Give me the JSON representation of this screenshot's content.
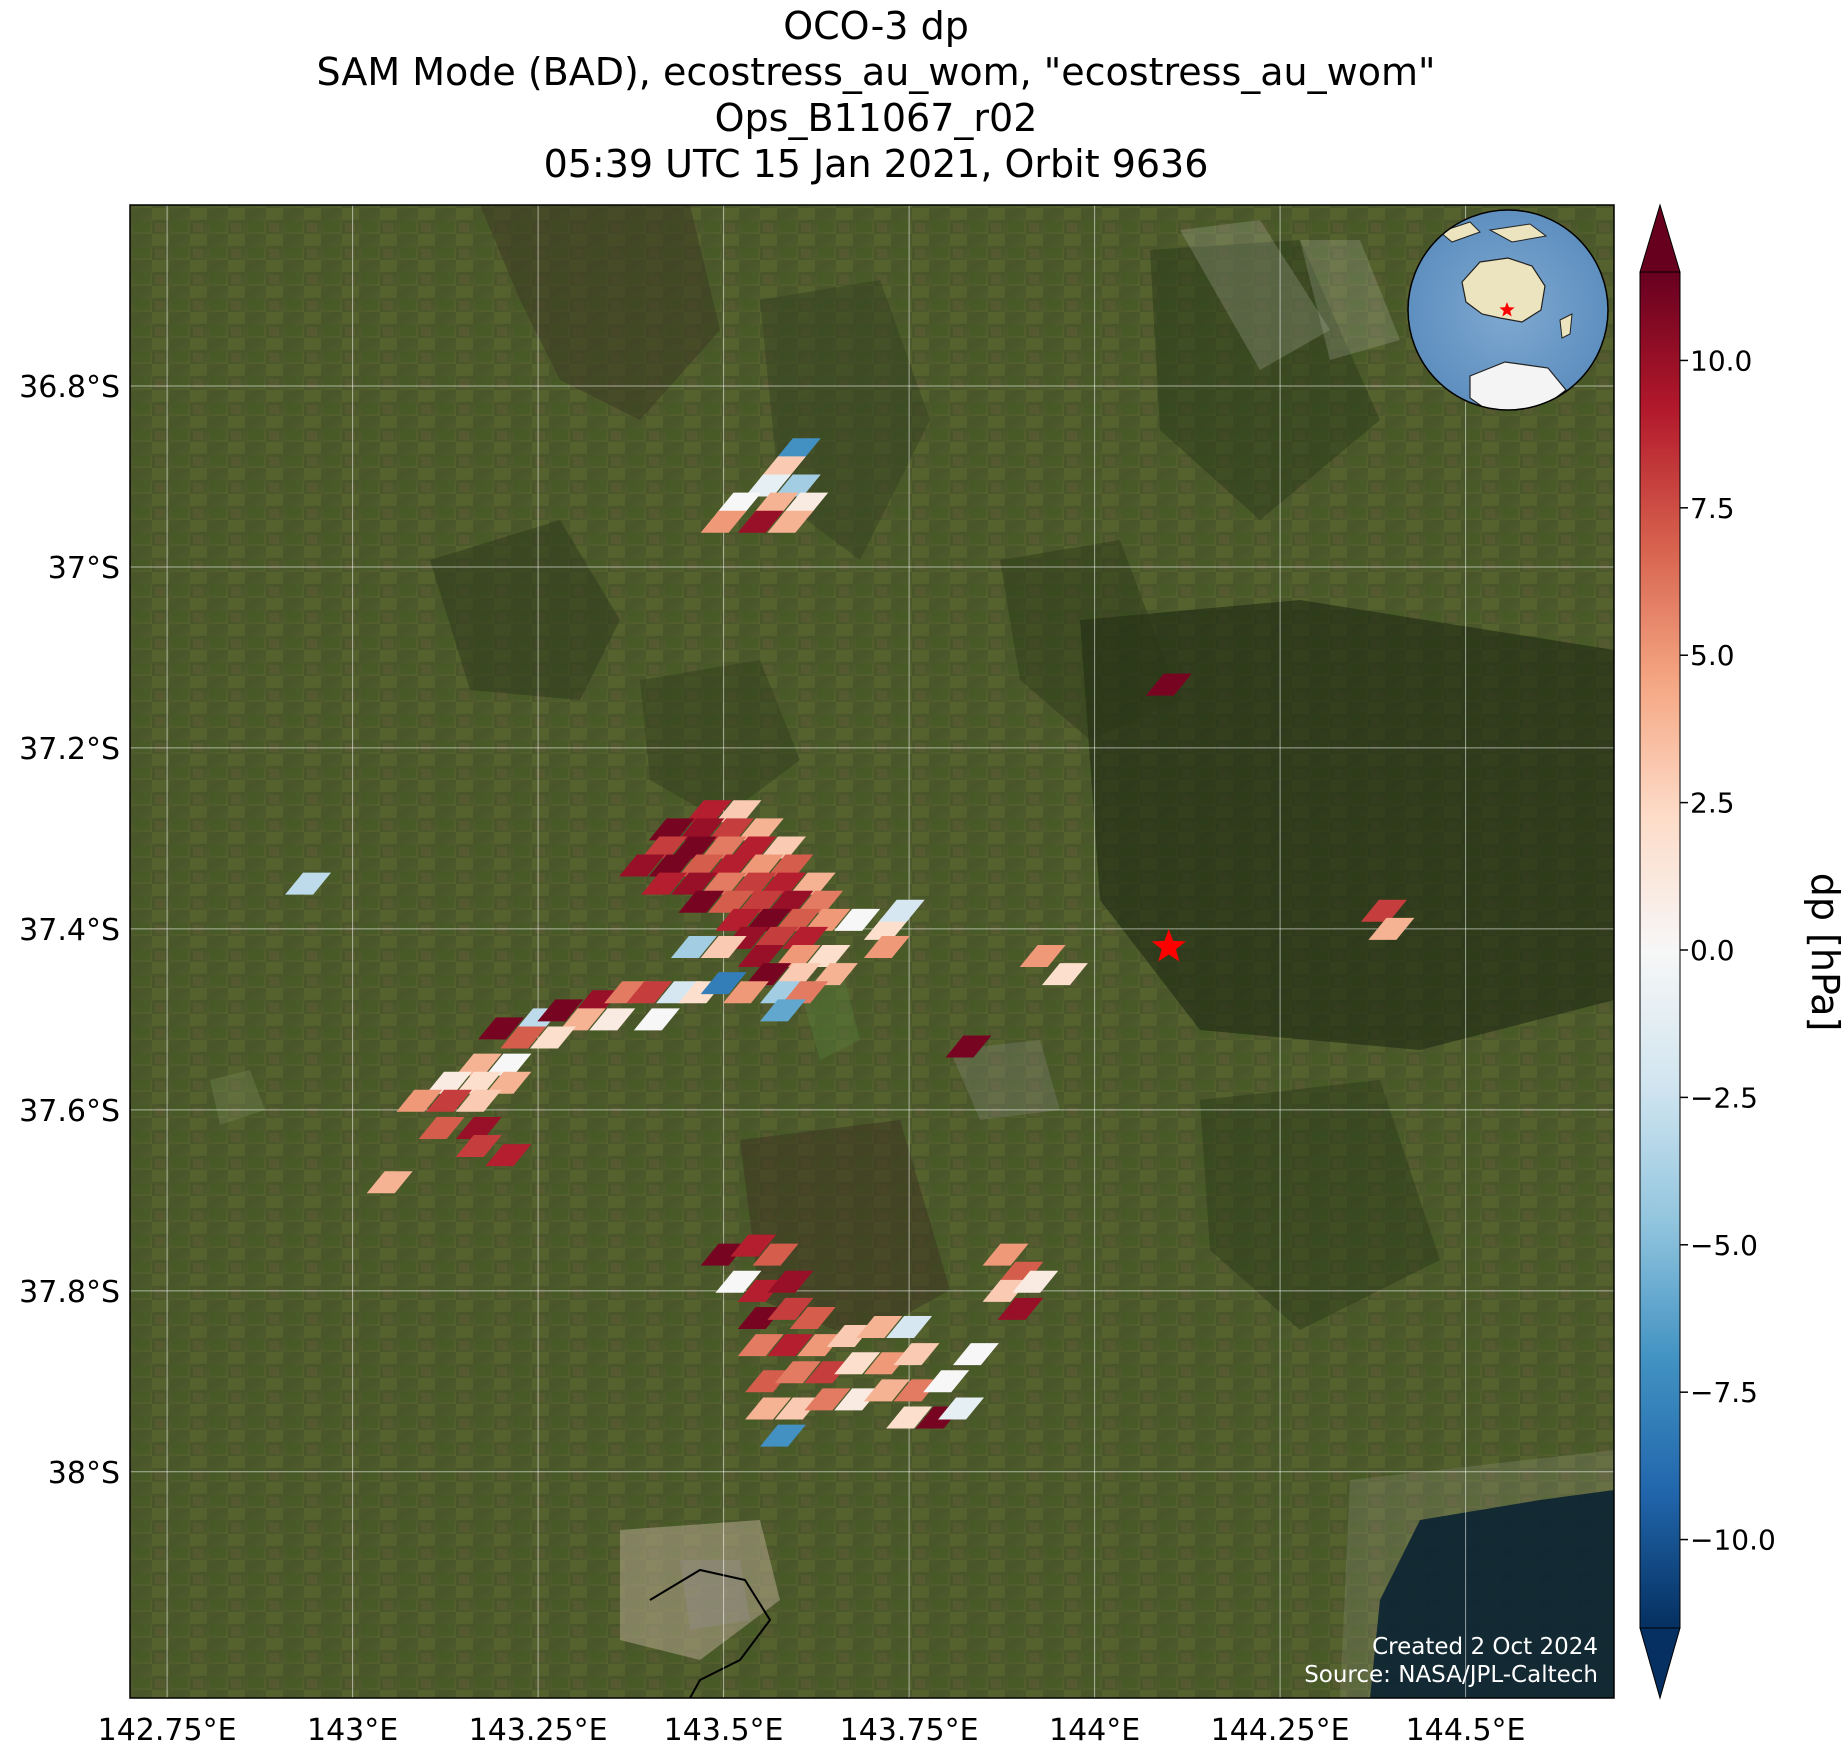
{
  "title": {
    "line1": "OCO-3 dp",
    "line2": "SAM Mode (BAD), ecostress_au_wom, \"ecostress_au_wom\"",
    "line3": "Ops_B11067_r02",
    "line4": "05:39 UTC 15 Jan 2021, Orbit 9636"
  },
  "map": {
    "lon_range": [
      142.7,
      144.7
    ],
    "lat_range": [
      -38.25,
      -36.6
    ],
    "lon_ticks": [
      {
        "value": 142.75,
        "label": "142.75°E"
      },
      {
        "value": 143.0,
        "label": "143°E"
      },
      {
        "value": 143.25,
        "label": "143.25°E"
      },
      {
        "value": 143.5,
        "label": "143.5°E"
      },
      {
        "value": 143.75,
        "label": "143.75°E"
      },
      {
        "value": 144.0,
        "label": "144°E"
      },
      {
        "value": 144.25,
        "label": "144.25°E"
      },
      {
        "value": 144.5,
        "label": "144.5°E"
      }
    ],
    "lat_ticks": [
      {
        "value": -36.8,
        "label": "36.8°S"
      },
      {
        "value": -37.0,
        "label": "37°S"
      },
      {
        "value": -37.2,
        "label": "37.2°S"
      },
      {
        "value": -37.4,
        "label": "37.4°S"
      },
      {
        "value": -37.6,
        "label": "37.6°S"
      },
      {
        "value": -37.8,
        "label": "37.8°S"
      },
      {
        "value": -38.0,
        "label": "38°S"
      }
    ],
    "target": {
      "lon": 144.1,
      "lat": -37.42,
      "color": "#ff0000"
    },
    "basemap": "satellite imagery",
    "inset_globe": {
      "centered_on": "Australia",
      "marker_color": "#ff0000"
    }
  },
  "colorbar": {
    "label": "dp [hPa]",
    "vmin": -11.5,
    "vmax": 11.5,
    "colormap": "RdBu_r",
    "extend": "both",
    "ticks": [
      {
        "value": 10.0,
        "label": "10.0"
      },
      {
        "value": 7.5,
        "label": "7.5"
      },
      {
        "value": 5.0,
        "label": "5.0"
      },
      {
        "value": 2.5,
        "label": "2.5"
      },
      {
        "value": 0.0,
        "label": "0.0"
      },
      {
        "value": -2.5,
        "label": "−2.5"
      },
      {
        "value": -5.0,
        "label": "−5.0"
      },
      {
        "value": -7.5,
        "label": "−7.5"
      },
      {
        "value": -10.0,
        "label": "−10.0"
      }
    ]
  },
  "footer": {
    "created": "Created 2 Oct 2024",
    "source": "Source: NASA/JPL-Caltech"
  },
  "chart_data": {
    "type": "scatter",
    "variable": "dp",
    "unit": "hPa",
    "points": [
      {
        "lon": 143.6,
        "lat": -36.87,
        "dp": -7
      },
      {
        "lon": 143.58,
        "lat": -36.89,
        "dp": 3
      },
      {
        "lon": 143.56,
        "lat": -36.91,
        "dp": -1
      },
      {
        "lon": 143.6,
        "lat": -36.91,
        "dp": -4
      },
      {
        "lon": 143.52,
        "lat": -36.93,
        "dp": 0
      },
      {
        "lon": 143.57,
        "lat": -36.93,
        "dp": 4
      },
      {
        "lon": 143.61,
        "lat": -36.93,
        "dp": 1
      },
      {
        "lon": 143.5,
        "lat": -36.95,
        "dp": 5
      },
      {
        "lon": 143.55,
        "lat": -36.95,
        "dp": 10
      },
      {
        "lon": 143.59,
        "lat": -36.95,
        "dp": 4
      },
      {
        "lon": 144.1,
        "lat": -37.13,
        "dp": 11
      },
      {
        "lon": 143.48,
        "lat": -37.27,
        "dp": 9
      },
      {
        "lon": 143.52,
        "lat": -37.27,
        "dp": 3
      },
      {
        "lon": 143.43,
        "lat": -37.29,
        "dp": 11
      },
      {
        "lon": 143.47,
        "lat": -37.29,
        "dp": 10
      },
      {
        "lon": 143.51,
        "lat": -37.29,
        "dp": 8
      },
      {
        "lon": 143.55,
        "lat": -37.29,
        "dp": 4
      },
      {
        "lon": 143.42,
        "lat": -37.31,
        "dp": 8
      },
      {
        "lon": 143.46,
        "lat": -37.31,
        "dp": 11
      },
      {
        "lon": 143.5,
        "lat": -37.31,
        "dp": 6
      },
      {
        "lon": 143.54,
        "lat": -37.31,
        "dp": 9
      },
      {
        "lon": 143.58,
        "lat": -37.31,
        "dp": 3
      },
      {
        "lon": 143.39,
        "lat": -37.33,
        "dp": 10
      },
      {
        "lon": 143.43,
        "lat": -37.33,
        "dp": 11
      },
      {
        "lon": 143.47,
        "lat": -37.33,
        "dp": 7
      },
      {
        "lon": 143.51,
        "lat": -37.33,
        "dp": 9
      },
      {
        "lon": 143.55,
        "lat": -37.33,
        "dp": 5
      },
      {
        "lon": 143.59,
        "lat": -37.33,
        "dp": 7
      },
      {
        "lon": 143.42,
        "lat": -37.35,
        "dp": 9
      },
      {
        "lon": 143.46,
        "lat": -37.35,
        "dp": 10
      },
      {
        "lon": 143.5,
        "lat": -37.35,
        "dp": 6
      },
      {
        "lon": 143.54,
        "lat": -37.35,
        "dp": 8
      },
      {
        "lon": 143.58,
        "lat": -37.35,
        "dp": 9
      },
      {
        "lon": 143.62,
        "lat": -37.35,
        "dp": 4
      },
      {
        "lon": 143.47,
        "lat": -37.37,
        "dp": 11
      },
      {
        "lon": 143.51,
        "lat": -37.37,
        "dp": 7
      },
      {
        "lon": 143.55,
        "lat": -37.37,
        "dp": 8
      },
      {
        "lon": 143.59,
        "lat": -37.37,
        "dp": 10
      },
      {
        "lon": 143.63,
        "lat": -37.37,
        "dp": 6
      },
      {
        "lon": 143.52,
        "lat": -37.39,
        "dp": 9
      },
      {
        "lon": 143.56,
        "lat": -37.39,
        "dp": 11
      },
      {
        "lon": 143.6,
        "lat": -37.39,
        "dp": 7
      },
      {
        "lon": 143.64,
        "lat": -37.39,
        "dp": 5
      },
      {
        "lon": 143.53,
        "lat": -37.41,
        "dp": 10
      },
      {
        "lon": 143.57,
        "lat": -37.41,
        "dp": 8
      },
      {
        "lon": 143.61,
        "lat": -37.41,
        "dp": 9
      },
      {
        "lon": 143.46,
        "lat": -37.42,
        "dp": -4
      },
      {
        "lon": 143.5,
        "lat": -37.42,
        "dp": 3
      },
      {
        "lon": 143.55,
        "lat": -37.43,
        "dp": 10
      },
      {
        "lon": 143.6,
        "lat": -37.43,
        "dp": 5
      },
      {
        "lon": 143.64,
        "lat": -37.43,
        "dp": 2
      },
      {
        "lon": 143.68,
        "lat": -37.39,
        "dp": 0
      },
      {
        "lon": 143.72,
        "lat": -37.4,
        "dp": 2
      },
      {
        "lon": 143.74,
        "lat": -37.38,
        "dp": -2
      },
      {
        "lon": 143.72,
        "lat": -37.42,
        "dp": 5
      },
      {
        "lon": 143.56,
        "lat": -37.45,
        "dp": 11
      },
      {
        "lon": 143.6,
        "lat": -37.45,
        "dp": 3
      },
      {
        "lon": 143.65,
        "lat": -37.45,
        "dp": 4
      },
      {
        "lon": 143.58,
        "lat": -37.47,
        "dp": -4
      },
      {
        "lon": 143.61,
        "lat": -37.47,
        "dp": 6
      },
      {
        "lon": 143.58,
        "lat": -37.49,
        "dp": -6
      },
      {
        "lon": 143.33,
        "lat": -37.48,
        "dp": 10
      },
      {
        "lon": 143.37,
        "lat": -37.47,
        "dp": 6
      },
      {
        "lon": 143.4,
        "lat": -37.47,
        "dp": 8
      },
      {
        "lon": 143.44,
        "lat": -37.47,
        "dp": -2
      },
      {
        "lon": 143.47,
        "lat": -37.47,
        "dp": 2
      },
      {
        "lon": 143.5,
        "lat": -37.46,
        "dp": -8
      },
      {
        "lon": 143.53,
        "lat": -37.47,
        "dp": 5
      },
      {
        "lon": 143.25,
        "lat": -37.5,
        "dp": -3
      },
      {
        "lon": 143.28,
        "lat": -37.49,
        "dp": 11
      },
      {
        "lon": 143.31,
        "lat": -37.5,
        "dp": 4
      },
      {
        "lon": 143.35,
        "lat": -37.5,
        "dp": 1
      },
      {
        "lon": 143.41,
        "lat": -37.5,
        "dp": 0
      },
      {
        "lon": 143.2,
        "lat": -37.51,
        "dp": 11
      },
      {
        "lon": 143.23,
        "lat": -37.52,
        "dp": 7
      },
      {
        "lon": 143.27,
        "lat": -37.52,
        "dp": 2
      },
      {
        "lon": 143.17,
        "lat": -37.55,
        "dp": 4
      },
      {
        "lon": 143.21,
        "lat": -37.55,
        "dp": 0
      },
      {
        "lon": 143.13,
        "lat": -37.57,
        "dp": 1
      },
      {
        "lon": 143.17,
        "lat": -37.57,
        "dp": 2
      },
      {
        "lon": 143.21,
        "lat": -37.57,
        "dp": 4
      },
      {
        "lon": 143.09,
        "lat": -37.59,
        "dp": 5
      },
      {
        "lon": 143.13,
        "lat": -37.59,
        "dp": 8
      },
      {
        "lon": 143.17,
        "lat": -37.59,
        "dp": 3
      },
      {
        "lon": 143.12,
        "lat": -37.62,
        "dp": 7
      },
      {
        "lon": 143.17,
        "lat": -37.62,
        "dp": 10
      },
      {
        "lon": 143.17,
        "lat": -37.64,
        "dp": 8
      },
      {
        "lon": 143.21,
        "lat": -37.65,
        "dp": 9
      },
      {
        "lon": 143.05,
        "lat": -37.68,
        "dp": 4
      },
      {
        "lon": 142.94,
        "lat": -37.35,
        "dp": -3
      },
      {
        "lon": 143.93,
        "lat": -37.43,
        "dp": 5
      },
      {
        "lon": 143.96,
        "lat": -37.45,
        "dp": 2
      },
      {
        "lon": 143.83,
        "lat": -37.53,
        "dp": 11
      },
      {
        "lon": 144.39,
        "lat": -37.38,
        "dp": 8
      },
      {
        "lon": 144.4,
        "lat": -37.4,
        "dp": 4
      },
      {
        "lon": 143.5,
        "lat": -37.76,
        "dp": 11
      },
      {
        "lon": 143.54,
        "lat": -37.75,
        "dp": 9
      },
      {
        "lon": 143.57,
        "lat": -37.76,
        "dp": 7
      },
      {
        "lon": 143.52,
        "lat": -37.79,
        "dp": 0
      },
      {
        "lon": 143.55,
        "lat": -37.8,
        "dp": 9
      },
      {
        "lon": 143.59,
        "lat": -37.79,
        "dp": 10
      },
      {
        "lon": 143.55,
        "lat": -37.83,
        "dp": 11
      },
      {
        "lon": 143.59,
        "lat": -37.82,
        "dp": 8
      },
      {
        "lon": 143.62,
        "lat": -37.83,
        "dp": 7
      },
      {
        "lon": 143.55,
        "lat": -37.86,
        "dp": 6
      },
      {
        "lon": 143.59,
        "lat": -37.86,
        "dp": 9
      },
      {
        "lon": 143.63,
        "lat": -37.86,
        "dp": 5
      },
      {
        "lon": 143.67,
        "lat": -37.85,
        "dp": 3
      },
      {
        "lon": 143.71,
        "lat": -37.84,
        "dp": 4
      },
      {
        "lon": 143.75,
        "lat": -37.84,
        "dp": -2
      },
      {
        "lon": 143.56,
        "lat": -37.9,
        "dp": 7
      },
      {
        "lon": 143.6,
        "lat": -37.89,
        "dp": 6
      },
      {
        "lon": 143.64,
        "lat": -37.89,
        "dp": 8
      },
      {
        "lon": 143.68,
        "lat": -37.88,
        "dp": 2
      },
      {
        "lon": 143.72,
        "lat": -37.88,
        "dp": 5
      },
      {
        "lon": 143.76,
        "lat": -37.87,
        "dp": 3
      },
      {
        "lon": 143.56,
        "lat": -37.93,
        "dp": 4
      },
      {
        "lon": 143.6,
        "lat": -37.93,
        "dp": 3
      },
      {
        "lon": 143.64,
        "lat": -37.92,
        "dp": 6
      },
      {
        "lon": 143.68,
        "lat": -37.92,
        "dp": 1
      },
      {
        "lon": 143.72,
        "lat": -37.91,
        "dp": 4
      },
      {
        "lon": 143.76,
        "lat": -37.91,
        "dp": 6
      },
      {
        "lon": 143.8,
        "lat": -37.9,
        "dp": 0
      },
      {
        "lon": 143.84,
        "lat": -37.87,
        "dp": 0
      },
      {
        "lon": 143.75,
        "lat": -37.94,
        "dp": 2
      },
      {
        "lon": 143.79,
        "lat": -37.94,
        "dp": 11
      },
      {
        "lon": 143.82,
        "lat": -37.93,
        "dp": -1
      },
      {
        "lon": 143.58,
        "lat": -37.96,
        "dp": -7
      },
      {
        "lon": 143.88,
        "lat": -37.76,
        "dp": 5
      },
      {
        "lon": 143.9,
        "lat": -37.78,
        "dp": 7
      },
      {
        "lon": 143.88,
        "lat": -37.8,
        "dp": 3
      },
      {
        "lon": 143.92,
        "lat": -37.79,
        "dp": 1
      },
      {
        "lon": 143.9,
        "lat": -37.82,
        "dp": 10
      }
    ]
  }
}
